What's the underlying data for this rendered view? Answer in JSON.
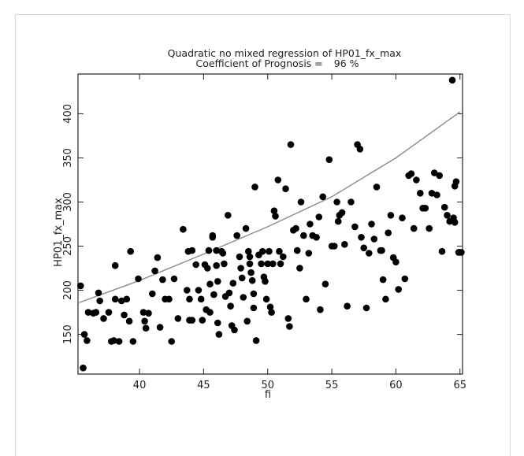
{
  "chart_data": {
    "type": "scatter",
    "title": "Quadratic no mixed regression of HP01_fx_max",
    "subtitle_label": "Coefficient of Prognosis =",
    "subtitle_value": "96 %",
    "xlabel": "fi",
    "ylabel": "HP01_fx_max",
    "xlim": [
      35.2,
      65.2
    ],
    "ylim": [
      105,
      445
    ],
    "xticks": [
      40,
      45,
      50,
      55,
      60,
      65
    ],
    "yticks": [
      150,
      200,
      250,
      300,
      350,
      400
    ],
    "grid": false,
    "colors": {
      "points": "#000000",
      "fit": "#8a8a8a",
      "axis": "#222222"
    },
    "fit_curve": {
      "x": [
        35.3,
        40,
        45,
        50,
        55,
        60,
        65
      ],
      "y": [
        186,
        211,
        241,
        272,
        306,
        350,
        402
      ]
    },
    "points": [
      [
        35.4,
        205
      ],
      [
        35.6,
        112
      ],
      [
        35.7,
        150
      ],
      [
        35.9,
        143
      ],
      [
        36.0,
        175
      ],
      [
        36.4,
        174
      ],
      [
        36.6,
        175
      ],
      [
        36.8,
        197
      ],
      [
        36.9,
        188
      ],
      [
        37.2,
        168
      ],
      [
        37.6,
        175
      ],
      [
        37.8,
        142
      ],
      [
        38.0,
        143
      ],
      [
        38.1,
        228
      ],
      [
        38.1,
        190
      ],
      [
        38.4,
        142
      ],
      [
        38.6,
        188
      ],
      [
        38.8,
        172
      ],
      [
        39.0,
        190
      ],
      [
        39.2,
        165
      ],
      [
        39.3,
        244
      ],
      [
        39.5,
        142
      ],
      [
        39.9,
        213
      ],
      [
        40.3,
        175
      ],
      [
        40.4,
        165
      ],
      [
        40.5,
        157
      ],
      [
        40.7,
        174
      ],
      [
        41.0,
        196
      ],
      [
        41.2,
        222
      ],
      [
        41.4,
        237
      ],
      [
        41.6,
        158
      ],
      [
        41.8,
        212
      ],
      [
        42.0,
        190
      ],
      [
        42.3,
        190
      ],
      [
        42.5,
        142
      ],
      [
        42.7,
        213
      ],
      [
        43.0,
        168
      ],
      [
        43.4,
        269
      ],
      [
        43.8,
        244
      ],
      [
        43.7,
        200
      ],
      [
        43.9,
        190
      ],
      [
        43.9,
        166
      ],
      [
        44.1,
        245
      ],
      [
        44.1,
        166
      ],
      [
        44.4,
        229
      ],
      [
        44.6,
        200
      ],
      [
        44.8,
        190
      ],
      [
        44.9,
        166
      ],
      [
        45.1,
        229
      ],
      [
        45.2,
        178
      ],
      [
        45.3,
        225
      ],
      [
        45.4,
        245
      ],
      [
        45.5,
        207
      ],
      [
        45.5,
        175
      ],
      [
        45.7,
        260
      ],
      [
        45.7,
        262
      ],
      [
        45.8,
        195
      ],
      [
        46.0,
        245
      ],
      [
        46.0,
        228
      ],
      [
        46.1,
        210
      ],
      [
        46.1,
        163
      ],
      [
        46.2,
        150
      ],
      [
        46.4,
        244
      ],
      [
        46.5,
        242
      ],
      [
        46.6,
        230
      ],
      [
        46.7,
        193
      ],
      [
        46.9,
        285
      ],
      [
        47.0,
        197
      ],
      [
        47.1,
        182
      ],
      [
        47.2,
        160
      ],
      [
        47.3,
        208
      ],
      [
        47.4,
        155
      ],
      [
        47.6,
        262
      ],
      [
        47.8,
        238
      ],
      [
        47.9,
        225
      ],
      [
        48.0,
        214
      ],
      [
        48.1,
        192
      ],
      [
        48.3,
        270
      ],
      [
        48.4,
        165
      ],
      [
        48.5,
        244
      ],
      [
        48.6,
        238
      ],
      [
        48.6,
        230
      ],
      [
        48.7,
        220
      ],
      [
        48.8,
        211
      ],
      [
        48.9,
        196
      ],
      [
        48.9,
        180
      ],
      [
        49.0,
        317
      ],
      [
        49.1,
        143
      ],
      [
        49.3,
        240
      ],
      [
        49.5,
        230
      ],
      [
        49.6,
        244
      ],
      [
        49.7,
        215
      ],
      [
        49.8,
        210
      ],
      [
        49.9,
        190
      ],
      [
        50.0,
        230
      ],
      [
        50.1,
        244
      ],
      [
        50.2,
        181
      ],
      [
        50.3,
        175
      ],
      [
        50.4,
        230
      ],
      [
        50.5,
        290
      ],
      [
        50.6,
        284
      ],
      [
        50.8,
        325
      ],
      [
        50.9,
        244
      ],
      [
        51.0,
        230
      ],
      [
        51.2,
        238
      ],
      [
        51.4,
        315
      ],
      [
        51.6,
        168
      ],
      [
        51.8,
        365
      ],
      [
        51.7,
        159
      ],
      [
        52.0,
        268
      ],
      [
        52.2,
        270
      ],
      [
        52.3,
        245
      ],
      [
        52.5,
        225
      ],
      [
        52.6,
        300
      ],
      [
        52.8,
        262
      ],
      [
        53.0,
        190
      ],
      [
        53.2,
        242
      ],
      [
        53.3,
        275
      ],
      [
        53.5,
        262
      ],
      [
        53.8,
        260
      ],
      [
        54.0,
        283
      ],
      [
        54.1,
        178
      ],
      [
        54.3,
        306
      ],
      [
        54.5,
        207
      ],
      [
        54.8,
        348
      ],
      [
        55.0,
        250
      ],
      [
        55.2,
        250
      ],
      [
        55.4,
        300
      ],
      [
        55.5,
        278
      ],
      [
        55.6,
        285
      ],
      [
        55.8,
        288
      ],
      [
        56.0,
        252
      ],
      [
        56.2,
        182
      ],
      [
        56.5,
        300
      ],
      [
        56.8,
        272
      ],
      [
        57.0,
        365
      ],
      [
        57.2,
        360
      ],
      [
        57.3,
        260
      ],
      [
        57.5,
        248
      ],
      [
        57.7,
        180
      ],
      [
        57.9,
        242
      ],
      [
        58.1,
        275
      ],
      [
        58.3,
        258
      ],
      [
        58.5,
        317
      ],
      [
        58.8,
        245
      ],
      [
        58.9,
        245
      ],
      [
        59.0,
        212
      ],
      [
        59.2,
        190
      ],
      [
        59.4,
        265
      ],
      [
        59.6,
        285
      ],
      [
        59.8,
        237
      ],
      [
        60.0,
        232
      ],
      [
        60.2,
        201
      ],
      [
        60.5,
        282
      ],
      [
        60.7,
        213
      ],
      [
        61.0,
        330
      ],
      [
        61.2,
        332
      ],
      [
        61.4,
        270
      ],
      [
        61.6,
        325
      ],
      [
        61.9,
        310
      ],
      [
        62.1,
        293
      ],
      [
        62.3,
        293
      ],
      [
        62.6,
        270
      ],
      [
        62.8,
        310
      ],
      [
        63.0,
        333
      ],
      [
        63.2,
        308
      ],
      [
        63.4,
        330
      ],
      [
        63.6,
        244
      ],
      [
        63.8,
        294
      ],
      [
        64.0,
        285
      ],
      [
        64.2,
        278
      ],
      [
        64.4,
        438
      ],
      [
        64.6,
        318
      ],
      [
        64.7,
        323
      ],
      [
        64.9,
        243
      ],
      [
        64.5,
        282
      ],
      [
        64.6,
        277
      ],
      [
        65.0,
        243
      ],
      [
        65.1,
        243
      ]
    ]
  }
}
